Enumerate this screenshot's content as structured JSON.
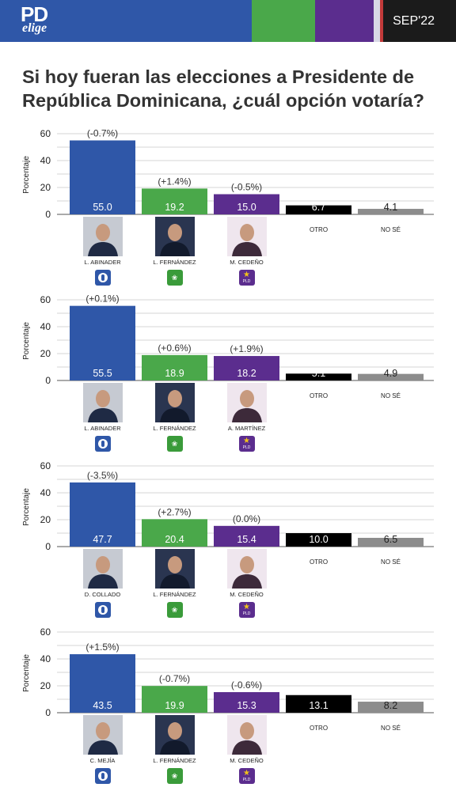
{
  "header": {
    "logo_top": "PD",
    "logo_bottom": "elige",
    "date": "SEP'22"
  },
  "title": "Si hoy fueran las elecciones a Presidente de República Dominicana, ¿cuál opción votaría?",
  "colors": {
    "prm": "#2f57a8",
    "fp": "#4aa84a",
    "pld": "#5b2d8e",
    "otro": "#000000",
    "no_se": "#8c8c8c"
  },
  "chart_data": [
    {
      "type": "bar",
      "ylabel": "Porcentaje",
      "ylim": [
        0,
        60
      ],
      "yticks": [
        0,
        20,
        40,
        60
      ],
      "grid": true,
      "categories": [
        "L. ABINADER",
        "L. FERNÁNDEZ",
        "M. CEDEÑO",
        "OTRO",
        "NO SÉ"
      ],
      "values": [
        55.0,
        19.2,
        15.0,
        6.7,
        4.1
      ],
      "value_labels": [
        "55.0",
        "19.2",
        "15.0",
        "6.7",
        "4.1"
      ],
      "changes": [
        "(-0.7%)",
        "(+1.4%)",
        "(-0.5%)",
        "",
        ""
      ],
      "party_icons": [
        "prm-icon",
        "fp-icon",
        "pld-icon"
      ],
      "party_texts": [
        "",
        "",
        "PLD"
      ]
    },
    {
      "type": "bar",
      "ylabel": "Porcentaje",
      "ylim": [
        0,
        60
      ],
      "yticks": [
        0,
        20,
        40,
        60
      ],
      "grid": true,
      "categories": [
        "L. ABINADER",
        "L. FERNÁNDEZ",
        "A. MARTÍNEZ",
        "OTRO",
        "NO SÉ"
      ],
      "values": [
        55.5,
        18.9,
        18.2,
        5.1,
        4.9
      ],
      "value_labels": [
        "55.5",
        "18.9",
        "18.2",
        "5.1",
        "4.9"
      ],
      "changes": [
        "(+0.1%)",
        "(+0.6%)",
        "(+1.9%)",
        "",
        ""
      ],
      "party_icons": [
        "prm-icon",
        "fp-icon",
        "pld-icon"
      ],
      "party_texts": [
        "",
        "",
        "PLD"
      ]
    },
    {
      "type": "bar",
      "ylabel": "Porcentaje",
      "ylim": [
        0,
        60
      ],
      "yticks": [
        0,
        20,
        40,
        60
      ],
      "grid": true,
      "categories": [
        "D. COLLADO",
        "L. FERNÁNDEZ",
        "M. CEDEÑO",
        "OTRO",
        "NO SÉ"
      ],
      "values": [
        47.7,
        20.4,
        15.4,
        10.0,
        6.5
      ],
      "value_labels": [
        "47.7",
        "20.4",
        "15.4",
        "10.0",
        "6.5"
      ],
      "changes": [
        "(-3.5%)",
        "(+2.7%)",
        "(0.0%)",
        "",
        ""
      ],
      "party_icons": [
        "prm-icon",
        "fp-icon",
        "pld-icon"
      ],
      "party_texts": [
        "",
        "",
        "PLD"
      ]
    },
    {
      "type": "bar",
      "ylabel": "Porcentaje",
      "ylim": [
        0,
        60
      ],
      "yticks": [
        0,
        20,
        40,
        60
      ],
      "grid": true,
      "categories": [
        "C. MEJÍA",
        "L. FERNÁNDEZ",
        "M. CEDEÑO",
        "OTRO",
        "NO SÉ"
      ],
      "values": [
        43.5,
        19.9,
        15.3,
        13.1,
        8.2
      ],
      "value_labels": [
        "43.5",
        "19.9",
        "15.3",
        "13.1",
        "8.2"
      ],
      "changes": [
        "(+1.5%)",
        "(-0.7%)",
        "(-0.6%)",
        "",
        ""
      ],
      "party_icons": [
        "prm-icon",
        "fp-icon",
        "pld-icon"
      ],
      "party_texts": [
        "",
        "",
        "PLD"
      ]
    }
  ]
}
